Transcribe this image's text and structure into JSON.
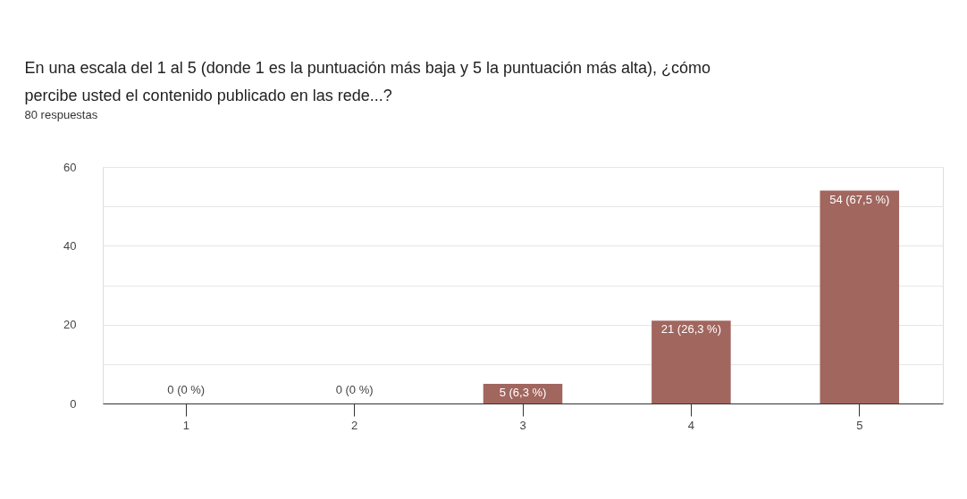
{
  "chart_data": {
    "type": "bar",
    "title": [
      "En una escala del 1 al 5 (donde 1 es la puntuación más baja y 5 la puntuación más alta), ¿cómo",
      "percibe usted el contenido publicado en las rede...?"
    ],
    "subtitle": "80 respuestas",
    "categories": [
      "1",
      "2",
      "3",
      "4",
      "5"
    ],
    "values": [
      0,
      0,
      5,
      21,
      54
    ],
    "value_labels": [
      "0 (0 %)",
      "0 (0 %)",
      "5 (6,3 %)",
      "21 (26,3 %)",
      "54 (67,5 %)"
    ],
    "color": "#a1665e",
    "ylim": [
      0,
      60
    ],
    "yticks": [
      0,
      {
        "value": 10,
        "label": null
      },
      20,
      {
        "value": 30,
        "label": null
      },
      40,
      {
        "value": 50,
        "label": null
      },
      60
    ],
    "grid": "y"
  }
}
